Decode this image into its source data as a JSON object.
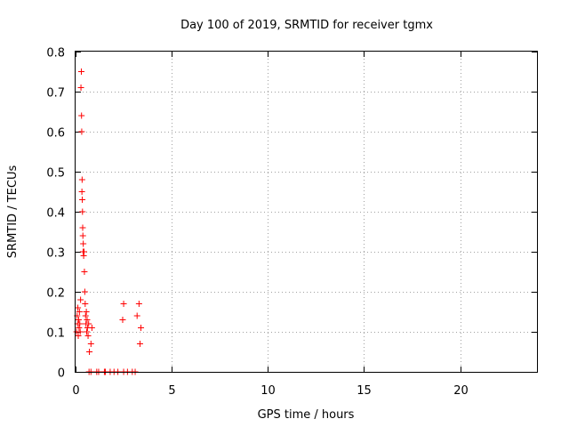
{
  "chart_data": {
    "type": "scatter",
    "title": "Day 100 of 2019, SRMTID for receiver tgmx",
    "xlabel": "GPS time / hours",
    "ylabel": "SRMTID / TECUs",
    "xlim": [
      0,
      24
    ],
    "ylim": [
      0,
      0.8
    ],
    "xticks": [
      0,
      5,
      10,
      15,
      20
    ],
    "xtick_labels": [
      "0",
      "5",
      "10",
      "15",
      "20"
    ],
    "yticks": [
      0,
      0.1,
      0.2,
      0.3,
      0.4,
      0.5,
      0.6,
      0.7,
      0.8
    ],
    "ytick_labels": [
      "0",
      "0.1",
      "0.2",
      "0.3",
      "0.4",
      "0.5",
      "0.6",
      "0.7",
      "0.8"
    ],
    "grid": true,
    "marker": "+",
    "color": "#ff0000",
    "series": [
      {
        "name": "SRMTID",
        "points": [
          [
            0.05,
            0.1
          ],
          [
            0.08,
            0.14
          ],
          [
            0.1,
            0.12
          ],
          [
            0.12,
            0.16
          ],
          [
            0.14,
            0.09
          ],
          [
            0.16,
            0.13
          ],
          [
            0.18,
            0.11
          ],
          [
            0.2,
            0.15
          ],
          [
            0.22,
            0.12
          ],
          [
            0.24,
            0.1
          ],
          [
            0.26,
            0.18
          ],
          [
            0.28,
            0.71
          ],
          [
            0.3,
            0.75
          ],
          [
            0.31,
            0.64
          ],
          [
            0.32,
            0.6
          ],
          [
            0.33,
            0.45
          ],
          [
            0.34,
            0.48
          ],
          [
            0.35,
            0.43
          ],
          [
            0.36,
            0.4
          ],
          [
            0.37,
            0.36
          ],
          [
            0.38,
            0.34
          ],
          [
            0.39,
            0.3
          ],
          [
            0.4,
            0.32
          ],
          [
            0.42,
            0.29
          ],
          [
            0.44,
            0.3
          ],
          [
            0.46,
            0.25
          ],
          [
            0.48,
            0.2
          ],
          [
            0.5,
            0.17
          ],
          [
            0.52,
            0.14
          ],
          [
            0.54,
            0.12
          ],
          [
            0.56,
            0.15
          ],
          [
            0.58,
            0.1
          ],
          [
            0.6,
            0.13
          ],
          [
            0.62,
            0.11
          ],
          [
            0.65,
            0.09
          ],
          [
            0.68,
            0.12
          ],
          [
            0.72,
            0.05
          ],
          [
            0.8,
            0.07
          ],
          [
            0.85,
            0.11
          ],
          [
            0.7,
            0.0
          ],
          [
            0.8,
            0.0
          ],
          [
            1.1,
            0.0
          ],
          [
            1.2,
            0.0
          ],
          [
            1.5,
            0.0
          ],
          [
            1.55,
            0.0
          ],
          [
            1.8,
            0.0
          ],
          [
            2.0,
            0.0
          ],
          [
            2.2,
            0.0
          ],
          [
            2.5,
            0.0
          ],
          [
            2.7,
            0.0
          ],
          [
            2.95,
            0.0
          ],
          [
            3.1,
            0.0
          ],
          [
            2.45,
            0.13
          ],
          [
            2.5,
            0.17
          ],
          [
            3.2,
            0.14
          ],
          [
            3.3,
            0.17
          ],
          [
            3.35,
            0.07
          ],
          [
            3.4,
            0.11
          ]
        ]
      }
    ]
  }
}
